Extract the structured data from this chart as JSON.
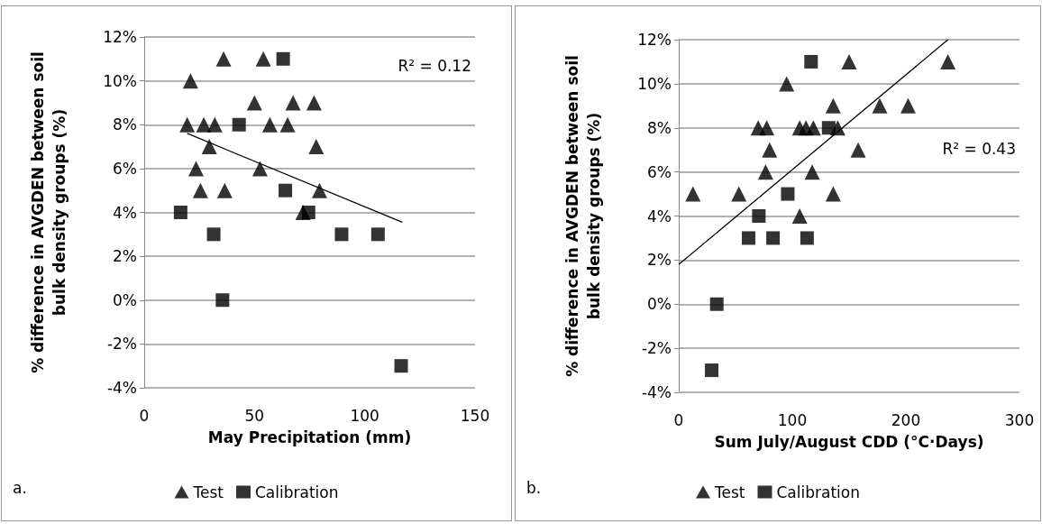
{
  "chart_data": [
    {
      "type": "scatter",
      "xlabel": "May Precipitation (mm)",
      "ylabel": "% difference in AVGDEN between soil bulk density groups (%)",
      "annotations": [
        "R² = 0.12",
        "a."
      ],
      "legend": "bottom",
      "grid": "y",
      "xlim": [
        0,
        150
      ],
      "xticks": [
        0,
        50,
        100,
        150
      ],
      "ylim": [
        -4,
        12
      ],
      "yticks": [
        {
          "value": -4,
          "label": "-4%"
        },
        {
          "value": -2,
          "label": "-2%"
        },
        {
          "value": 0,
          "label": "0%"
        },
        {
          "value": 2,
          "label": "2%"
        },
        {
          "value": 4,
          "label": "4%"
        },
        {
          "value": 6,
          "label": "6%"
        },
        {
          "value": 8,
          "label": "8%"
        },
        {
          "value": 10,
          "label": "10%"
        },
        {
          "value": 12,
          "label": "12%"
        }
      ],
      "series": [
        {
          "name": "Test",
          "color": "#000000",
          "marker": "triangle",
          "x": [
            36,
            54,
            21,
            50,
            67.5,
            77,
            19.5,
            27,
            32,
            57,
            65,
            29.5,
            78,
            23.5,
            52.5,
            25.5,
            36.5,
            79.5,
            72
          ],
          "values": [
            11,
            11,
            10,
            9,
            9,
            9,
            8,
            8,
            8,
            8,
            8,
            7,
            7,
            6,
            6,
            5,
            5,
            5,
            4
          ]
        },
        {
          "name": "Calibration",
          "color": "#000000",
          "marker": "square",
          "x": [
            63,
            43,
            64,
            16.5,
            74.5,
            31.5,
            89.5,
            106,
            35.5,
            116.5
          ],
          "values": [
            11,
            8,
            5,
            4,
            4,
            3,
            3,
            3,
            0,
            -3
          ]
        },
        {
          "type": "line",
          "color": "#000000",
          "marker": "none",
          "x": [
            19.5,
            117
          ],
          "values": [
            7.6,
            3.55
          ]
        }
      ]
    },
    {
      "type": "scatter",
      "xlabel": "Sum July/August CDD (°C·Days)",
      "ylabel": "% difference in AVGDEN between soil bulk density groups (%)",
      "annotations": [
        "R² = 0.43",
        "b."
      ],
      "legend": "bottom",
      "grid": "y",
      "xlim": [
        0,
        300
      ],
      "xticks": [
        0,
        100,
        200,
        300
      ],
      "ylim": [
        -4,
        12
      ],
      "yticks": [
        {
          "value": -4,
          "label": "-4%"
        },
        {
          "value": -2,
          "label": "-2%"
        },
        {
          "value": 0,
          "label": "0%"
        },
        {
          "value": 2,
          "label": "2%"
        },
        {
          "value": 4,
          "label": "4%"
        },
        {
          "value": 6,
          "label": "6%"
        },
        {
          "value": 8,
          "label": "8%"
        },
        {
          "value": 10,
          "label": "10%"
        },
        {
          "value": 12,
          "label": "12%"
        }
      ],
      "series": [
        {
          "name": "Test",
          "color": "#000000",
          "marker": "triangle",
          "x": [
            12.5,
            53,
            95,
            150,
            237,
            136,
            177,
            202,
            70,
            77.5,
            106.5,
            112,
            118.5,
            140,
            80,
            158,
            76.5,
            117.5,
            136,
            106.5
          ],
          "values": [
            5,
            5,
            10,
            11,
            11,
            9,
            9,
            9,
            8,
            8,
            8,
            8,
            8,
            8,
            7,
            7,
            6,
            6,
            5,
            4
          ]
        },
        {
          "name": "Calibration",
          "color": "#000000",
          "marker": "square",
          "x": [
            116.5,
            132,
            96,
            70.5,
            61.5,
            83,
            113,
            33.5,
            29
          ],
          "values": [
            11,
            8,
            5,
            4,
            3,
            3,
            3,
            0,
            -3
          ]
        },
        {
          "type": "line",
          "color": "#000000",
          "marker": "none",
          "x": [
            0,
            237
          ],
          "values": [
            1.8,
            12
          ]
        }
      ]
    }
  ]
}
